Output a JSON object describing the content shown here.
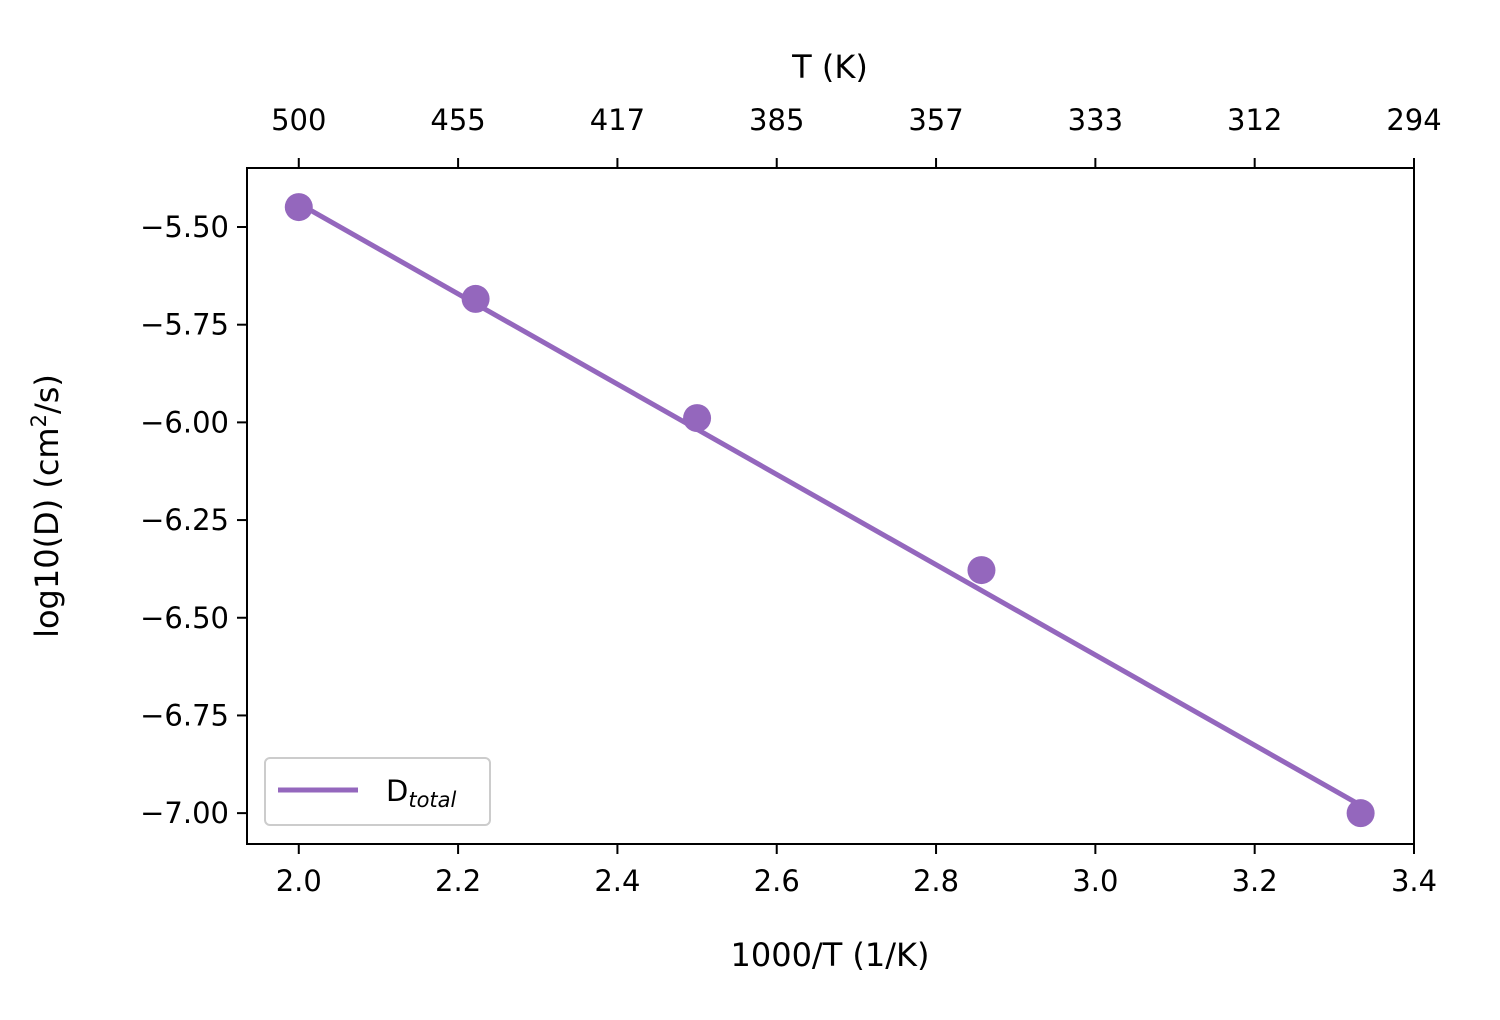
{
  "chart_data": {
    "type": "line",
    "title": "",
    "xlabel": "1000/T (1/K)",
    "ylabel": "log10(D) (cm²/s)",
    "ylabel_parts": {
      "main": "log10(D) (cm",
      "sup": "2",
      "tail": "/s)"
    },
    "top_xlabel": "T (K)",
    "xlim": [
      1.935,
      3.4
    ],
    "ylim": [
      -7.079,
      -5.349
    ],
    "xticks": [
      2.0,
      2.2,
      2.4,
      2.6,
      2.8,
      3.0,
      3.2,
      3.4
    ],
    "xtick_labels": [
      "2.0",
      "2.2",
      "2.4",
      "2.6",
      "2.8",
      "3.0",
      "3.2",
      "3.4"
    ],
    "top_xticks": [
      2.0,
      2.2,
      2.4,
      2.6,
      2.8,
      3.0,
      3.2,
      3.4
    ],
    "top_xtick_labels": [
      "500",
      "455",
      "417",
      "385",
      "357",
      "333",
      "312",
      "294"
    ],
    "yticks": [
      -5.5,
      -5.75,
      -6.0,
      -6.25,
      -6.5,
      -6.75,
      -7.0
    ],
    "ytick_labels": [
      "−5.50",
      "−5.75",
      "−6.00",
      "−6.25",
      "−6.50",
      "−6.75",
      "−7.00"
    ],
    "grid": false,
    "legend": {
      "placement": "lower-left",
      "label_main": "D",
      "label_sub": "total"
    },
    "color": "#9467bd",
    "points": {
      "x": [
        2.0,
        2.222,
        2.5,
        2.857,
        3.333
      ],
      "y": [
        -5.449,
        -5.684,
        -5.989,
        -6.378,
        -7.0
      ]
    },
    "fit_line": {
      "name": "D_total",
      "x": [
        2.0,
        3.333
      ],
      "y": [
        -5.44,
        -6.98
      ]
    }
  }
}
